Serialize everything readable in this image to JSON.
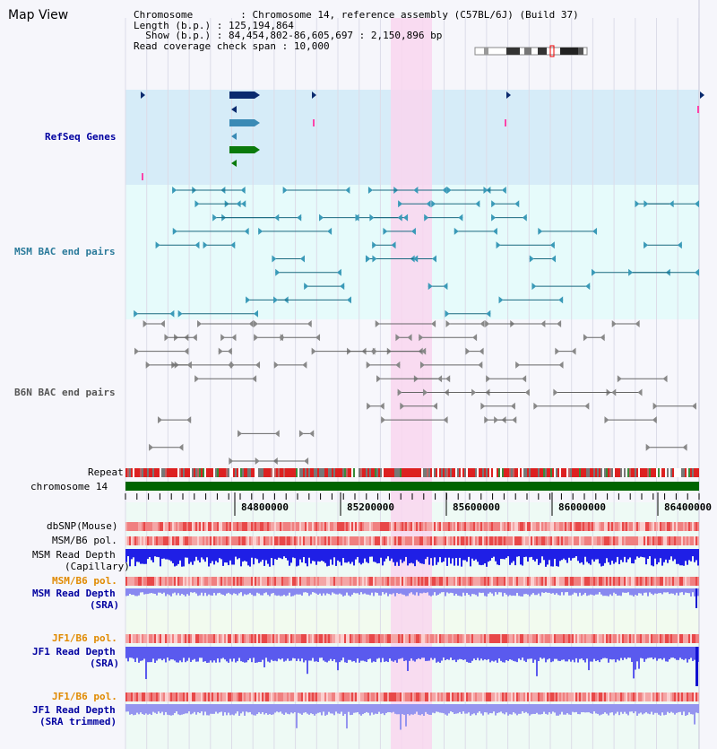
{
  "title": "Map View",
  "info": {
    "chromosome_key": "Chromosome",
    "chromosome_val": "Chromosome 14, reference assembly (C57BL/6J) (Build 37)",
    "length_key": "Length (b.p.)",
    "length_val": "125,194,864",
    "show_key": "Show (b.p.)",
    "show_val": "84,454,802-86,605,697 : 2,150,896 bp",
    "span_key": "Read coverage check span",
    "span_val": "10,000"
  },
  "tracks": {
    "refseq": "RefSeq Genes",
    "msm_bac": "MSM BAC end pairs",
    "b6n_bac": "B6N BAC end pairs",
    "repeat": "Repeat",
    "chromosome": "chromosome 14",
    "dbsnp": "dbSNP(Mouse)",
    "msm_b6_pol": "MSM/B6 pol.",
    "msm_depth_cap_1": "MSM Read Depth",
    "msm_depth_cap_2": "(Capillary)",
    "msm_b6_pol_2": "MSM/B6 pol.",
    "msm_depth_sra_1": "MSM Read Depth",
    "msm_depth_sra_2": "(SRA)",
    "jf1_b6_pol": "JF1/B6 pol.",
    "jf1_depth_sra_1": "JF1 Read Depth",
    "jf1_depth_sra_2": "(SRA)",
    "jf1_b6_pol_2": "JF1/B6 pol.",
    "jf1_depth_trim_1": "JF1 Read Depth",
    "jf1_depth_trim_2": "(SRA trimmed)"
  },
  "axis": {
    "ticks": [
      "84800000",
      "85200000",
      "85600000",
      "86000000",
      "86400000"
    ]
  },
  "colors": {
    "refseq_band": "#d6ecf8",
    "msm_band": "#e6fbfb",
    "highlight": "#f9d6ef",
    "chromosome_bar": "#006400",
    "depth_blue": "#1f1fe6",
    "depth_light": "#8888f0",
    "jf1_depth": "#5a5aee",
    "pol_red": "#e84040",
    "navy_gene": "#0a2a6e",
    "blue_gene": "#3a8ab5",
    "green_gene": "#0b7a0b"
  }
}
